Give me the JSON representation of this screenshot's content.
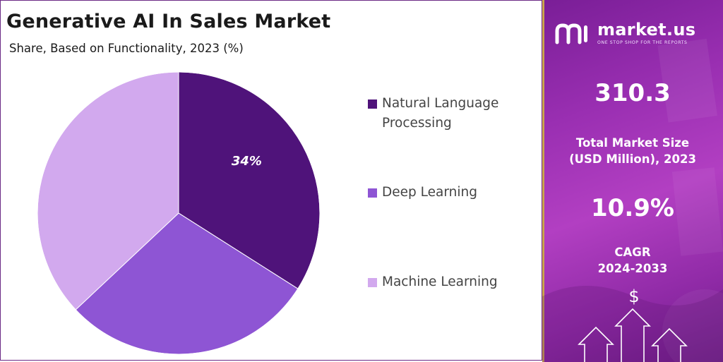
{
  "chart_data": {
    "type": "pie",
    "title": "Generative AI In Sales Market",
    "subtitle": "Share, Based on Functionality, 2023 (%)",
    "categories": [
      "Natural Language Processing",
      "Deep Learning",
      "Machine Learning"
    ],
    "values": [
      34,
      29,
      37
    ],
    "data_labels": [
      "34%",
      "",
      ""
    ],
    "colors": [
      "#4f137a",
      "#8e55d4",
      "#d2a9ee"
    ],
    "legend_placement": "right"
  },
  "legend": {
    "items": [
      {
        "label": "Natural Language Processing",
        "color": "#4f137a"
      },
      {
        "label": "Deep Learning",
        "color": "#8e55d4"
      },
      {
        "label": "Machine Learning",
        "color": "#d2a9ee"
      }
    ]
  },
  "brand": {
    "name": "market.us",
    "tagline": "ONE STOP SHOP FOR THE REPORTS",
    "logo_icon": "market-us-logo-icon"
  },
  "stats": {
    "market_size": {
      "value": "310.3",
      "label_line1": "Total Market Size",
      "label_line2": "(USD Million), 2023"
    },
    "cagr": {
      "value": "10.9%",
      "label_line1": "CAGR",
      "label_line2": "2024-2033"
    }
  },
  "decor": {
    "currency_symbol": "$",
    "arrow_icon": "up-arrow-icon"
  }
}
